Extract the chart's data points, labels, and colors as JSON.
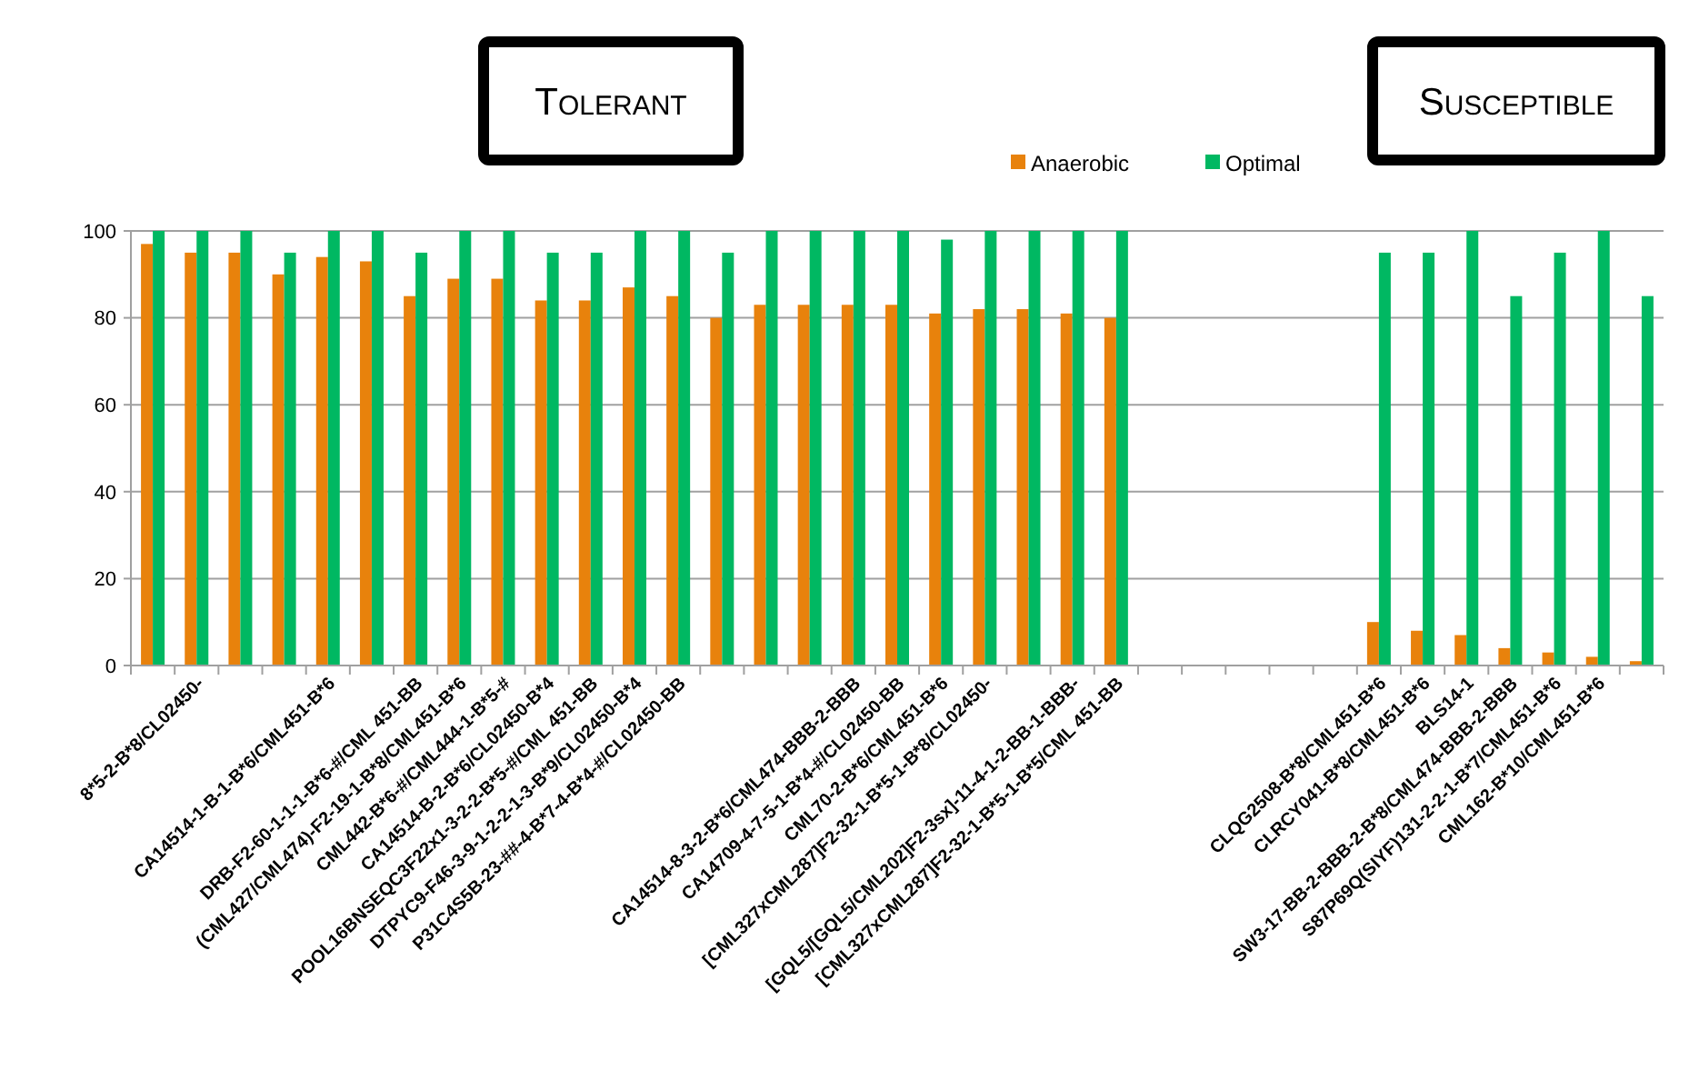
{
  "chart_data": {
    "type": "bar",
    "categories": [
      null,
      "8*5-2-B*8/CL02450-",
      null,
      null,
      "CA14514-1-B-1-B*6/CML451-B*6",
      null,
      "DRB-F2-60-1-1-1-B*6-#/CML 451-BB",
      "(CML427/CML474)-F2-19-1-B*8/CML451-B*6",
      "CML442-B*6-#/CML444-1-B*5-#",
      "CA14514-B-2-B*6/CL02450-B*4",
      "POOL16BNSEQC3F22x1-3-2-2-B*5-#/CML 451-BB",
      "DTPYC9-F46-3-9-1-2-2-1-3-B*9/CL02450-B*4",
      "P31C4S5B-23-##-4-B*7-4-B*4-#/CL02450-BB",
      null,
      null,
      null,
      "CA14514-8-3-2-B*6/CML474-BBB-2-BBB",
      "CA14709-4-7-5-1-B*4-#/CL02450-BB",
      "CML70-2-B*6/CML451-B*6",
      "[CML327xCML287]F2-32-1-B*5-1-B*8/CL02450-",
      null,
      "[GQL5/[GQL5/CML202]F2-3sx]-11-4-1-2-BB-1-BBB-",
      "[CML327xCML287]F2-32-1-B*5-1-B*5/CML 451-BB",
      null,
      null,
      null,
      null,
      null,
      "CLQG2508-B*8/CML451-B*6",
      "CLRCY041-B*8/CML451-B*6",
      "BLS14-1",
      "SW3-17-BB-2-BBB-2-B*8/CML474-BBB-2-BBB",
      "S87P69Q(SIYF)131-2-2-1-B*7/CML451-B*6",
      "CML162-B*10/CML451-B*6",
      null
    ],
    "series": [
      {
        "name": "Anaerobic",
        "color": "#e8820c",
        "values": [
          97,
          95,
          95,
          90,
          94,
          93,
          85,
          89,
          89,
          84,
          84,
          87,
          85,
          80,
          83,
          83,
          83,
          83,
          81,
          82,
          82,
          81,
          80,
          null,
          null,
          null,
          null,
          null,
          10,
          8,
          7,
          4,
          3,
          2,
          1
        ]
      },
      {
        "name": "Optimal",
        "color": "#00b862",
        "values": [
          100,
          100,
          100,
          95,
          100,
          100,
          95,
          100,
          100,
          95,
          95,
          100,
          100,
          95,
          100,
          100,
          100,
          100,
          98,
          100,
          100,
          100,
          100,
          null,
          null,
          null,
          null,
          null,
          95,
          95,
          100,
          85,
          95,
          100,
          85
        ]
      }
    ],
    "ylim": [
      0,
      100
    ],
    "yticks": [
      0,
      20,
      40,
      60,
      80,
      100
    ],
    "grid": "y",
    "legend": "top right",
    "annotations": [
      "Tolerant",
      "Susceptible"
    ]
  }
}
